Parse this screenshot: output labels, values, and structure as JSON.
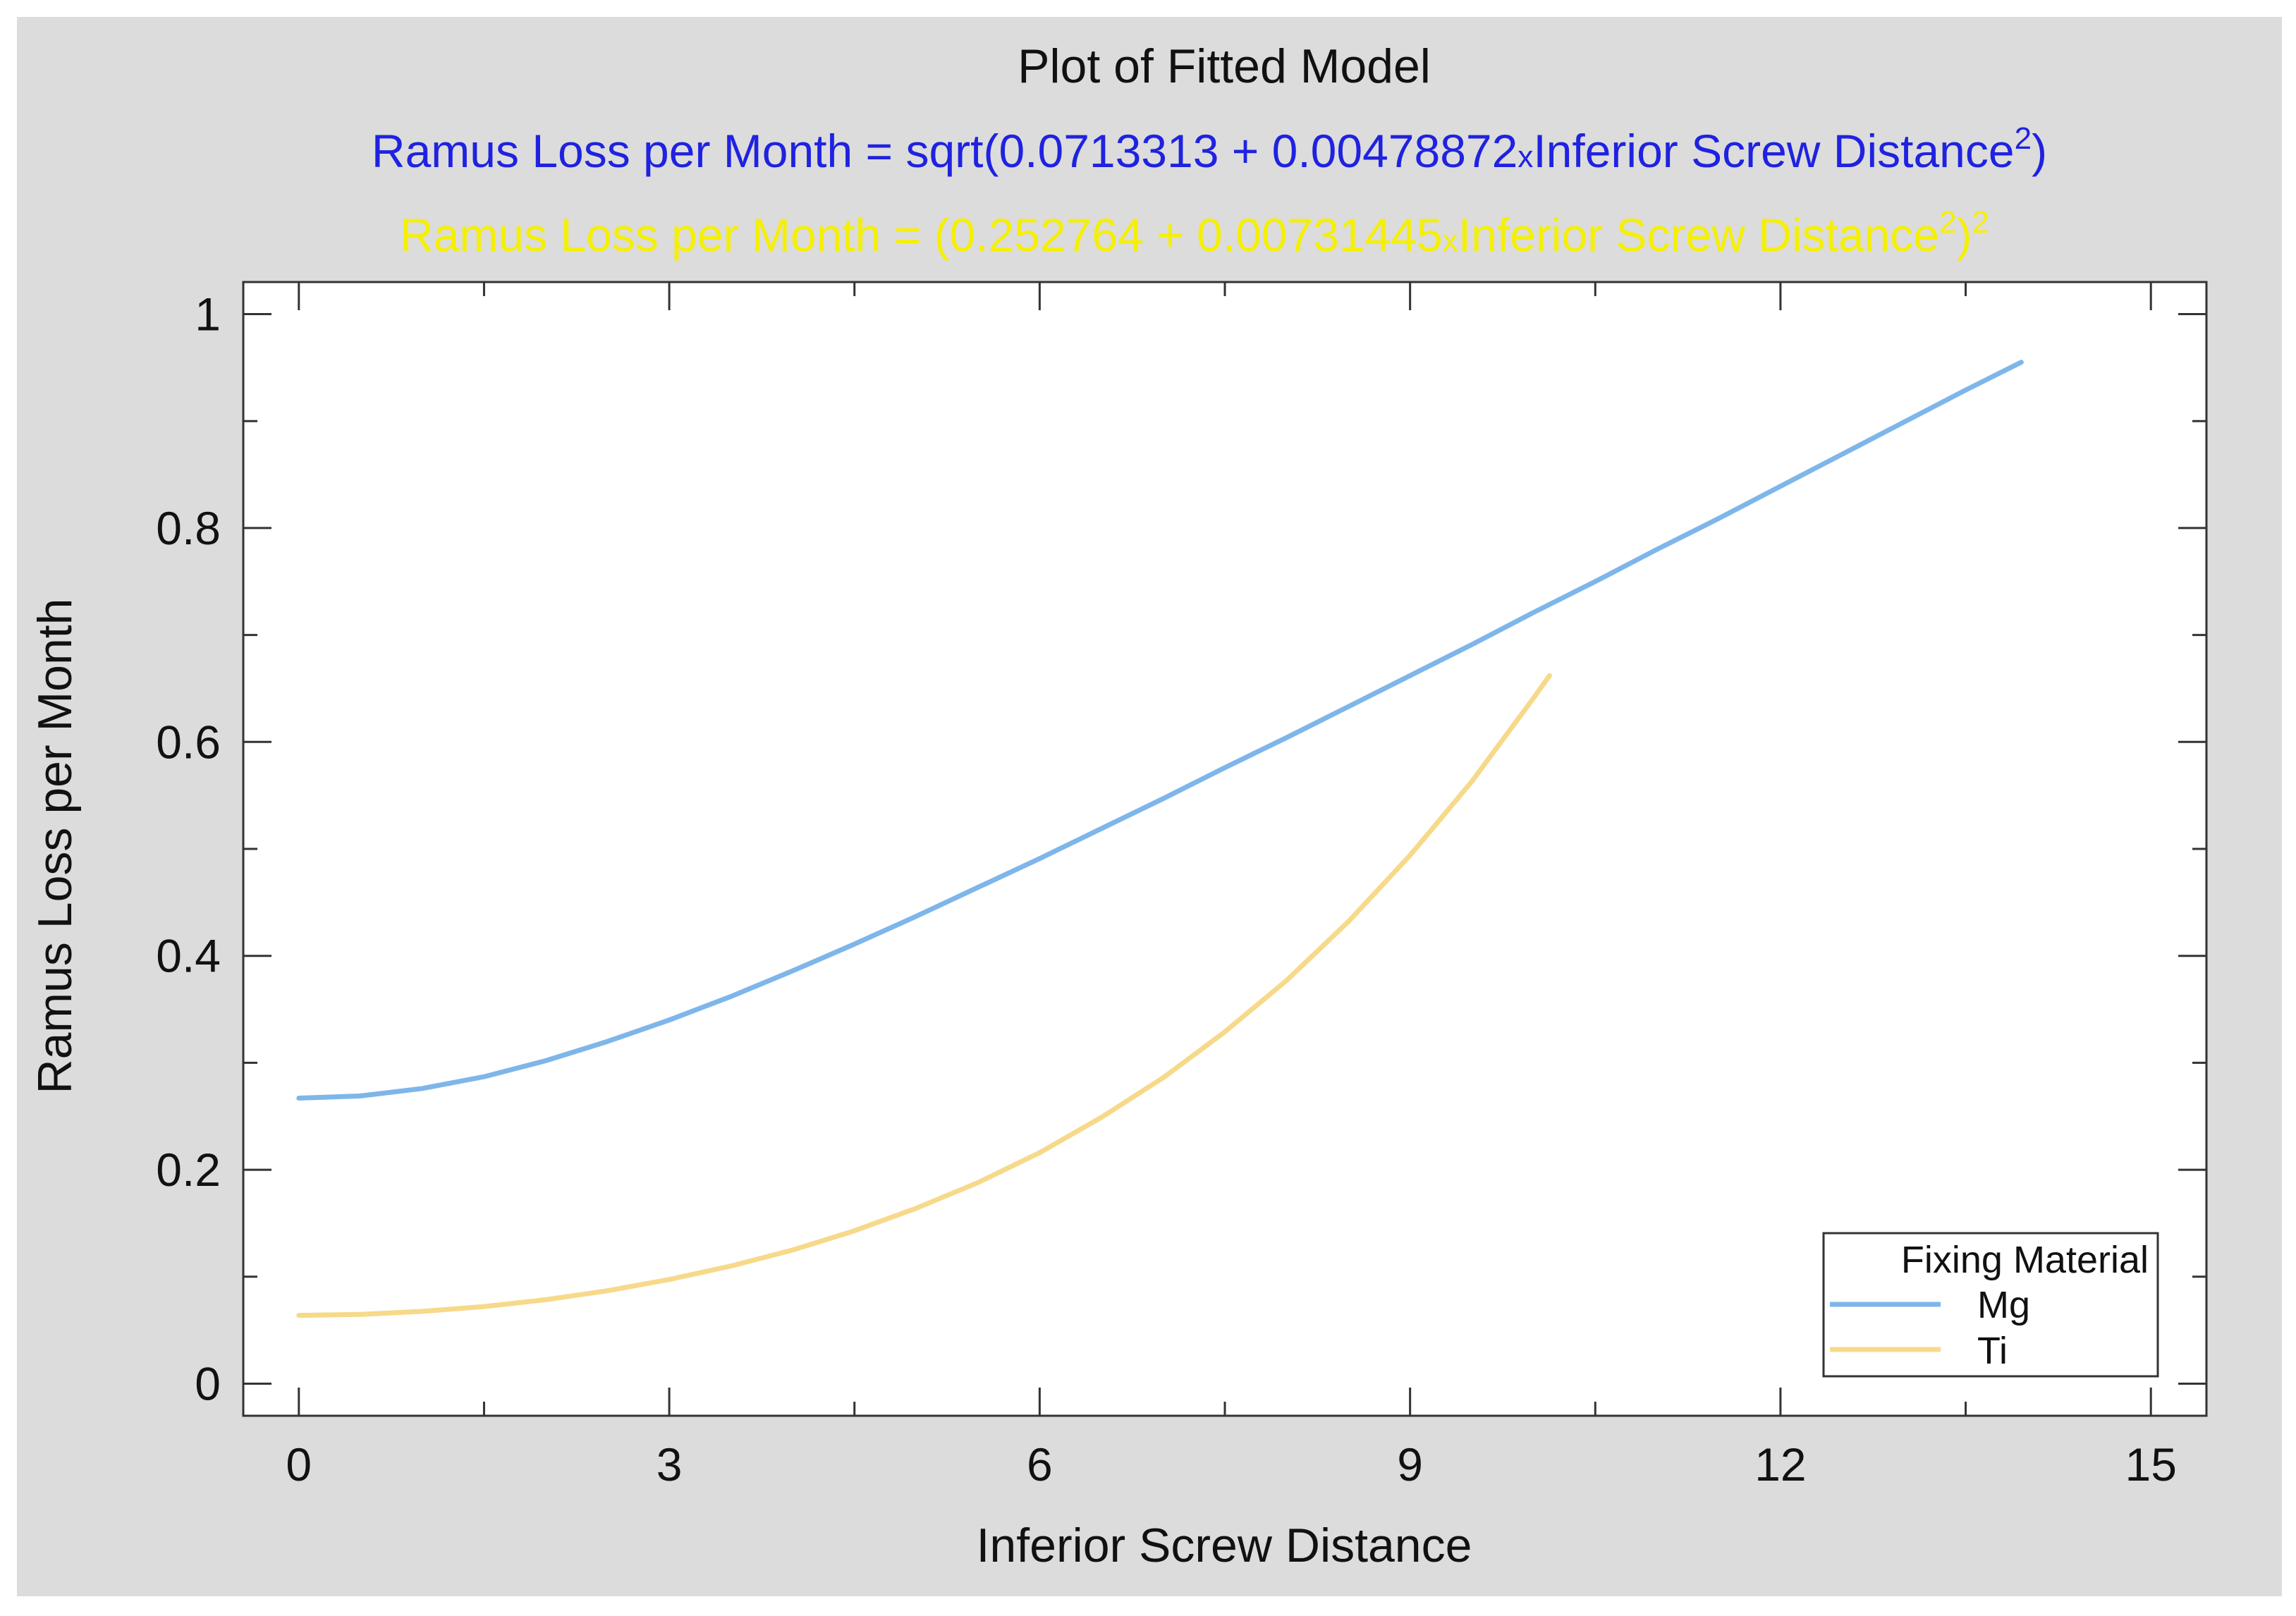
{
  "chart_data": {
    "type": "line",
    "title": "Plot of Fitted Model",
    "equations": [
      {
        "color": "#1f22e0",
        "prefix": "Ramus Loss per Month = sqrt(0.0713313 + 0.00478872",
        "mult": "x",
        "var": "Inferior Screw Distance",
        "exp": "2",
        "suffix": ")",
        "outer_exp": ""
      },
      {
        "color": "#f5f000",
        "prefix": "Ramus Loss per Month = (0.252764 + 0.00731445",
        "mult": "x",
        "var": "Inferior Screw Distance",
        "exp": "2",
        "suffix": ")",
        "outer_exp": "2"
      }
    ],
    "xlabel": "Inferior Screw Distance",
    "ylabel": "Ramus Loss per Month",
    "xlim": [
      -0.45,
      15.45
    ],
    "ylim": [
      -0.03,
      1.03
    ],
    "x_ticks": [
      0,
      3,
      6,
      9,
      12,
      15
    ],
    "x_tick_labels": [
      "0",
      "3",
      "6",
      "9",
      "12",
      "15"
    ],
    "y_ticks": [
      0,
      0.2,
      0.4,
      0.6,
      0.8,
      1
    ],
    "y_tick_labels": [
      "0",
      "0.2",
      "0.4",
      "0.6",
      "0.8",
      "1"
    ],
    "grid": false,
    "legend": {
      "title": "Fixing Material",
      "placement": "bottom-right"
    },
    "series": [
      {
        "name": "Mg",
        "color": "#7eb6ea",
        "x": [
          0,
          0.5,
          1,
          1.5,
          2,
          2.5,
          3,
          3.5,
          4,
          4.5,
          5,
          5.5,
          6,
          6.5,
          7,
          7.5,
          8,
          8.5,
          9,
          9.5,
          10,
          10.5,
          11,
          11.5,
          12,
          12.5,
          13,
          13.5,
          13.95
        ],
        "y": [
          0.267,
          0.269,
          0.276,
          0.287,
          0.302,
          0.32,
          0.34,
          0.362,
          0.386,
          0.411,
          0.437,
          0.464,
          0.491,
          0.519,
          0.547,
          0.576,
          0.604,
          0.633,
          0.662,
          0.691,
          0.721,
          0.75,
          0.78,
          0.809,
          0.839,
          0.869,
          0.899,
          0.929,
          0.955
        ]
      },
      {
        "name": "Ti",
        "color": "#f7d98a",
        "x": [
          0,
          0.5,
          1,
          1.5,
          2,
          2.5,
          3,
          3.5,
          4,
          4.5,
          5,
          5.5,
          6,
          6.5,
          7,
          7.5,
          8,
          8.5,
          9,
          9.5,
          10,
          10.13
        ],
        "y": [
          0.0639,
          0.0648,
          0.0676,
          0.0721,
          0.0785,
          0.0869,
          0.0974,
          0.11,
          0.125,
          0.143,
          0.164,
          0.188,
          0.216,
          0.249,
          0.286,
          0.329,
          0.377,
          0.432,
          0.494,
          0.563,
          0.641,
          0.662
        ]
      }
    ]
  }
}
